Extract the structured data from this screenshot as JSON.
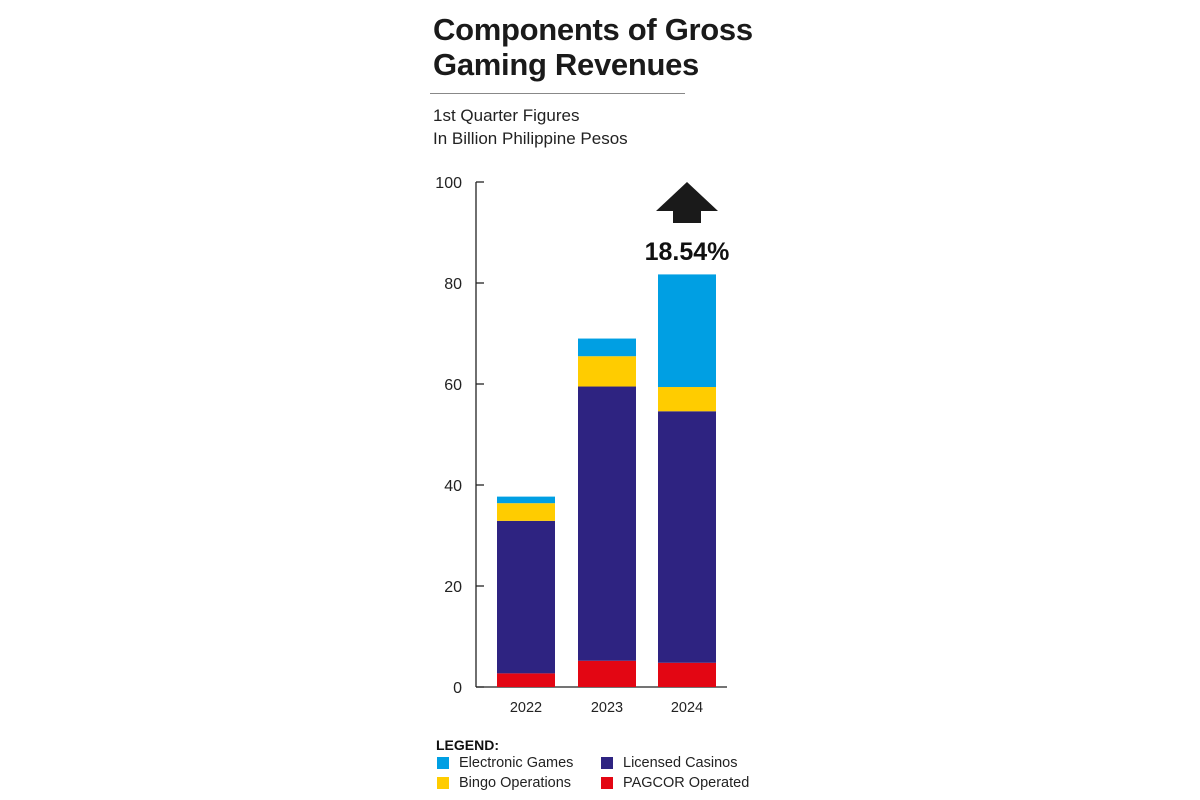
{
  "title_text": "Components of Gross Gaming Revenues",
  "subtitle_line1": "1st Quarter Figures",
  "subtitle_line2": "In Billion Philippine Pesos",
  "legend_title": "LEGEND:",
  "colors": {
    "electronic_games": "#009fe3",
    "bingo_operations": "#ffcc00",
    "licensed_casinos": "#2e2381",
    "pagcor_operated": "#e30613",
    "arrow": "#1a1a1a"
  },
  "chart_data": {
    "type": "bar",
    "stacked": true,
    "title": "Components of Gross Gaming Revenues",
    "subtitle": "1st Quarter Figures In Billion Philippine Pesos",
    "xlabel": "",
    "ylabel": "",
    "ylim": [
      0,
      100
    ],
    "yticks": [
      0,
      20,
      40,
      60,
      80,
      100
    ],
    "grid": false,
    "legend_position": "bottom",
    "categories": [
      "2022",
      "2023",
      "2024"
    ],
    "series": [
      {
        "name": "PAGCOR Operated",
        "values": [
          2.7,
          5.2,
          4.8
        ]
      },
      {
        "name": "Licensed Casinos",
        "values": [
          30.2,
          54.3,
          49.8
        ]
      },
      {
        "name": "Bingo Operations",
        "values": [
          3.5,
          6.0,
          4.8
        ]
      },
      {
        "name": "Electronic Games",
        "values": [
          1.3,
          3.5,
          22.3
        ]
      }
    ],
    "annotation": {
      "text": "18.54%",
      "category": "2024"
    }
  }
}
